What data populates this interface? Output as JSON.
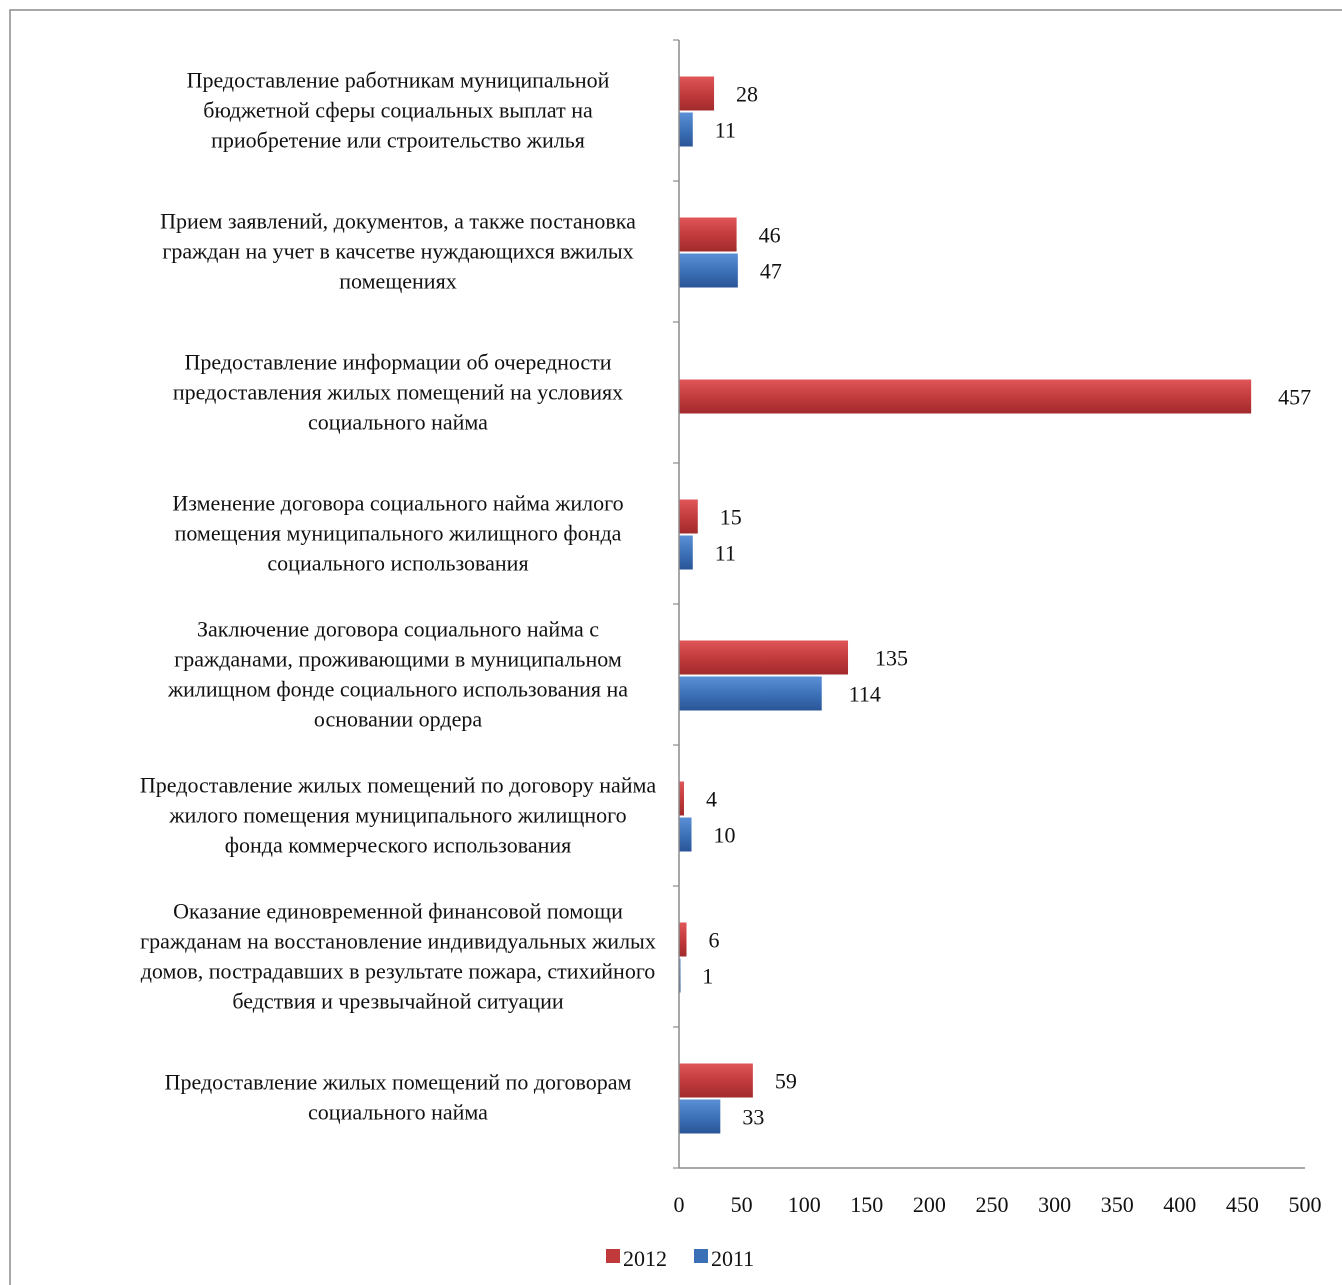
{
  "colors": {
    "series_2012": "#c0393b",
    "series_2011": "#3b6fb6",
    "axis": "#8c8c8c",
    "frame": "#8c8c8c",
    "text": "#111111"
  },
  "chart_data": {
    "type": "bar",
    "orientation": "horizontal",
    "categories": [
      [
        "Предоставление работникам муниципальной",
        "бюджетной сферы социальных выплат на",
        "приобретение или строительство жилья"
      ],
      [
        "Прием заявлений, документов, а также постановка",
        "граждан на учет в качсетве нуждающихся  вжилых",
        "помещениях"
      ],
      [
        "Предоставление информации об очередности",
        "предоставления жилых помещений на условиях",
        "социального найма"
      ],
      [
        "Изменение договора социального найма жилого",
        "помещения муниципального жилищного фонда",
        "социального использования"
      ],
      [
        "Заключение договора социального найма с",
        "гражданами, проживающими в муниципальном",
        "жилищном фонде социального использования на",
        "основании ордера"
      ],
      [
        "Предоставление жилых помещений по договору найма",
        "жилого помещения муниципального жилищного",
        "фонда коммерческого использования"
      ],
      [
        "Оказание единовременной финансовой помощи",
        "гражданам на восстановление индивидуальных жилых",
        "домов, пострадавших в результате пожара, стихийного",
        "бедствия и чрезвычайной ситуации"
      ],
      [
        "Предоставление жилых помещений по договорам",
        "социального найма"
      ]
    ],
    "series": [
      {
        "name": "2012",
        "values": [
          28,
          46,
          457,
          15,
          135,
          4,
          6,
          59
        ]
      },
      {
        "name": "2011",
        "values": [
          11,
          47,
          null,
          11,
          114,
          10,
          1,
          33
        ]
      }
    ],
    "xlim": [
      0,
      500
    ],
    "xticks": [
      "0",
      "50",
      "100",
      "150",
      "200",
      "250",
      "300",
      "350",
      "400",
      "450",
      "500"
    ],
    "legend_position": "bottom",
    "grid": false
  }
}
